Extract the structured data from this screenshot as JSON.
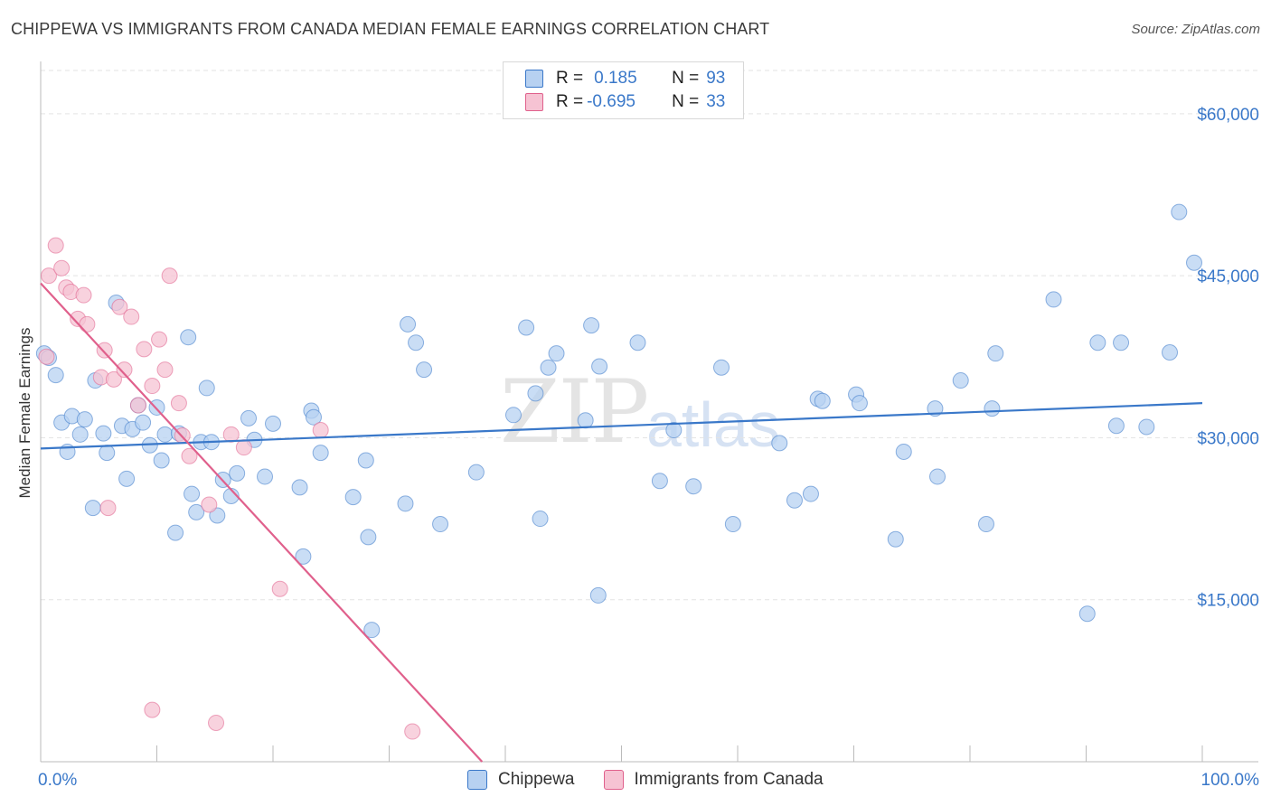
{
  "title": "CHIPPEWA VS IMMIGRANTS FROM CANADA MEDIAN FEMALE EARNINGS CORRELATION CHART",
  "source": "Source: ZipAtlas.com",
  "watermark": {
    "zip": "ZIP",
    "atlas": "atlas"
  },
  "colors": {
    "blue": "#3a78c9",
    "blue_fill": "#b7d1f1",
    "pink": "#e0608c",
    "pink_fill": "#f6c3d3",
    "grid": "#e3e3e3"
  },
  "legend": {
    "rows": [
      {
        "r_label": "R =",
        "r_value": "0.185",
        "n_label": "N =",
        "n_value": "93"
      },
      {
        "r_label": "R =",
        "r_value": "-0.695",
        "n_label": "N =",
        "n_value": "33"
      }
    ]
  },
  "chart_data": {
    "type": "scatter",
    "title": "CHIPPEWA VS IMMIGRANTS FROM CANADA MEDIAN FEMALE EARNINGS CORRELATION CHART",
    "xlabel": "",
    "ylabel": "Median Female Earnings",
    "xlim": [
      0,
      100
    ],
    "ylim": [
      0,
      64000
    ],
    "x_tick_labels": [
      "0.0%",
      "100.0%"
    ],
    "y_ticks": [
      15000,
      30000,
      45000,
      60000
    ],
    "y_tick_labels": [
      "$15,000",
      "$30,000",
      "$45,000",
      "$60,000"
    ],
    "series": [
      {
        "name": "Chippewa",
        "color": "#3a78c9",
        "fill": "#b7d1f1",
        "trend": {
          "x": [
            0,
            100
          ],
          "y": [
            29000,
            33200
          ]
        },
        "points": [
          [
            0.3,
            37800
          ],
          [
            0.7,
            37400
          ],
          [
            1.3,
            35800
          ],
          [
            1.8,
            31400
          ],
          [
            2.3,
            28700
          ],
          [
            2.7,
            32000
          ],
          [
            3.4,
            30300
          ],
          [
            3.8,
            31700
          ],
          [
            4.5,
            23500
          ],
          [
            4.7,
            35300
          ],
          [
            5.4,
            30400
          ],
          [
            5.7,
            28600
          ],
          [
            6.5,
            42500
          ],
          [
            7.0,
            31100
          ],
          [
            7.4,
            26200
          ],
          [
            7.9,
            30800
          ],
          [
            8.4,
            33000
          ],
          [
            8.8,
            31400
          ],
          [
            9.4,
            29300
          ],
          [
            10.0,
            32800
          ],
          [
            10.4,
            27900
          ],
          [
            10.7,
            30300
          ],
          [
            11.6,
            21200
          ],
          [
            11.9,
            30400
          ],
          [
            12.7,
            39300
          ],
          [
            13.0,
            24800
          ],
          [
            13.4,
            23100
          ],
          [
            13.8,
            29600
          ],
          [
            14.3,
            34600
          ],
          [
            14.7,
            29600
          ],
          [
            15.2,
            22800
          ],
          [
            15.7,
            26100
          ],
          [
            16.4,
            24600
          ],
          [
            16.9,
            26700
          ],
          [
            17.9,
            31800
          ],
          [
            18.4,
            29800
          ],
          [
            19.3,
            26400
          ],
          [
            20.0,
            31300
          ],
          [
            22.3,
            25400
          ],
          [
            22.6,
            19000
          ],
          [
            23.3,
            32500
          ],
          [
            23.5,
            31900
          ],
          [
            24.1,
            28600
          ],
          [
            26.9,
            24500
          ],
          [
            28.0,
            27900
          ],
          [
            28.2,
            20800
          ],
          [
            28.5,
            12200
          ],
          [
            31.4,
            23900
          ],
          [
            31.6,
            40500
          ],
          [
            32.3,
            38800
          ],
          [
            33.0,
            36300
          ],
          [
            34.4,
            22000
          ],
          [
            37.5,
            26800
          ],
          [
            40.7,
            32100
          ],
          [
            41.8,
            40200
          ],
          [
            42.6,
            34100
          ],
          [
            43.0,
            22500
          ],
          [
            43.7,
            36500
          ],
          [
            44.4,
            37800
          ],
          [
            46.9,
            31600
          ],
          [
            47.4,
            40400
          ],
          [
            48.1,
            36600
          ],
          [
            48.0,
            15400
          ],
          [
            51.4,
            38800
          ],
          [
            53.3,
            26000
          ],
          [
            54.5,
            30700
          ],
          [
            56.2,
            25500
          ],
          [
            58.6,
            36500
          ],
          [
            59.6,
            22000
          ],
          [
            63.6,
            29500
          ],
          [
            64.9,
            24200
          ],
          [
            66.3,
            24800
          ],
          [
            66.9,
            33600
          ],
          [
            67.3,
            33400
          ],
          [
            70.2,
            34000
          ],
          [
            70.5,
            33200
          ],
          [
            73.6,
            20600
          ],
          [
            74.3,
            28700
          ],
          [
            77.0,
            32700
          ],
          [
            77.2,
            26400
          ],
          [
            79.2,
            35300
          ],
          [
            81.4,
            22000
          ],
          [
            81.9,
            32700
          ],
          [
            82.2,
            37800
          ],
          [
            87.2,
            42800
          ],
          [
            90.1,
            13700
          ],
          [
            91.0,
            38800
          ],
          [
            92.6,
            31100
          ],
          [
            93.0,
            38800
          ],
          [
            95.2,
            31000
          ],
          [
            97.2,
            37900
          ],
          [
            98.0,
            50900
          ],
          [
            99.3,
            46200
          ]
        ]
      },
      {
        "name": "Immigrants from Canada",
        "color": "#e0608c",
        "fill": "#f6c3d3",
        "trend": {
          "x": [
            0,
            38
          ],
          "y": [
            44300,
            0
          ]
        },
        "points": [
          [
            0.5,
            37500
          ],
          [
            0.7,
            45000
          ],
          [
            1.3,
            47800
          ],
          [
            1.8,
            45700
          ],
          [
            2.2,
            43900
          ],
          [
            2.6,
            43500
          ],
          [
            3.2,
            41000
          ],
          [
            3.7,
            43200
          ],
          [
            4.0,
            40500
          ],
          [
            5.2,
            35600
          ],
          [
            5.5,
            38100
          ],
          [
            5.8,
            23500
          ],
          [
            6.3,
            35400
          ],
          [
            6.8,
            42100
          ],
          [
            7.2,
            36300
          ],
          [
            7.8,
            41200
          ],
          [
            8.4,
            33000
          ],
          [
            8.9,
            38200
          ],
          [
            9.6,
            34800
          ],
          [
            10.2,
            39100
          ],
          [
            10.7,
            36300
          ],
          [
            11.1,
            45000
          ],
          [
            11.9,
            33200
          ],
          [
            12.2,
            30200
          ],
          [
            12.8,
            28300
          ],
          [
            14.5,
            23800
          ],
          [
            16.4,
            30300
          ],
          [
            17.5,
            29100
          ],
          [
            20.6,
            16000
          ],
          [
            24.1,
            30700
          ],
          [
            9.6,
            4800
          ],
          [
            15.1,
            3600
          ],
          [
            32.0,
            2800
          ]
        ]
      }
    ]
  },
  "bottom_legend": [
    "Chippewa",
    "Immigrants from Canada"
  ]
}
